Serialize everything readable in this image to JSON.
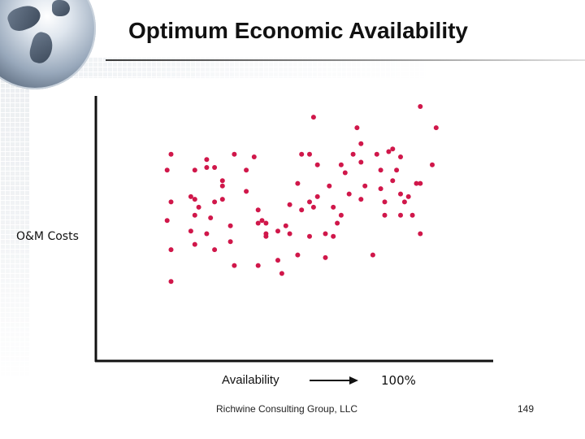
{
  "slide": {
    "title": "Optimum Economic Availability",
    "footer": "Richwine Consulting Group, LLC",
    "page_number": "149"
  },
  "colors": {
    "point": "#d0174a",
    "axis": "#111111",
    "arrow": "#111111"
  },
  "chart_data": {
    "type": "scatter",
    "title": "",
    "xlabel": "Availability",
    "xlabel_end": "100%",
    "ylabel": "O&M Costs",
    "x_axis_arrow": true,
    "xlim": [
      0,
      100
    ],
    "ylim": [
      0,
      100
    ],
    "grid": false,
    "legend": "none",
    "series": [
      {
        "points": [
          [
            19,
            30
          ],
          [
            19,
            42
          ],
          [
            18,
            53
          ],
          [
            19,
            60
          ],
          [
            18,
            72
          ],
          [
            19,
            78
          ],
          [
            24,
            62
          ],
          [
            25,
            55
          ],
          [
            25,
            61
          ],
          [
            25,
            72
          ],
          [
            25,
            44
          ],
          [
            24,
            49
          ],
          [
            28,
            76
          ],
          [
            26,
            58
          ],
          [
            28,
            73
          ],
          [
            30,
            73
          ],
          [
            30,
            42
          ],
          [
            28,
            48
          ],
          [
            29,
            54
          ],
          [
            30,
            60
          ],
          [
            32,
            68
          ],
          [
            32,
            66
          ],
          [
            32,
            61
          ],
          [
            34,
            51
          ],
          [
            34,
            45
          ],
          [
            35,
            36
          ],
          [
            35,
            78
          ],
          [
            40,
            77
          ],
          [
            38,
            72
          ],
          [
            38,
            64
          ],
          [
            41,
            36
          ],
          [
            41,
            57
          ],
          [
            42,
            53
          ],
          [
            43,
            48
          ],
          [
            43,
            47
          ],
          [
            43,
            52
          ],
          [
            41,
            52
          ],
          [
            46,
            38
          ],
          [
            46,
            49
          ],
          [
            48,
            51
          ],
          [
            47,
            33
          ],
          [
            49,
            48
          ],
          [
            49,
            59
          ],
          [
            51,
            67
          ],
          [
            51,
            40
          ],
          [
            52,
            78
          ],
          [
            52,
            57
          ],
          [
            54,
            78
          ],
          [
            54,
            60
          ],
          [
            54,
            47
          ],
          [
            55,
            92
          ],
          [
            55,
            58
          ],
          [
            56,
            74
          ],
          [
            56,
            62
          ],
          [
            58,
            48
          ],
          [
            58,
            39
          ],
          [
            60,
            58
          ],
          [
            59,
            66
          ],
          [
            60,
            47
          ],
          [
            61,
            52
          ],
          [
            62,
            55
          ],
          [
            62,
            74
          ],
          [
            63,
            71
          ],
          [
            64,
            63
          ],
          [
            65,
            78
          ],
          [
            66,
            88
          ],
          [
            67,
            82
          ],
          [
            67,
            75
          ],
          [
            67,
            61
          ],
          [
            68,
            66
          ],
          [
            70,
            40
          ],
          [
            71,
            78
          ],
          [
            72,
            65
          ],
          [
            72,
            72
          ],
          [
            73,
            60
          ],
          [
            73,
            55
          ],
          [
            74,
            79
          ],
          [
            75,
            80
          ],
          [
            75,
            68
          ],
          [
            76,
            72
          ],
          [
            77,
            77
          ],
          [
            77,
            63
          ],
          [
            77,
            55
          ],
          [
            78,
            60
          ],
          [
            79,
            62
          ],
          [
            80,
            55
          ],
          [
            81,
            67
          ],
          [
            82,
            67
          ],
          [
            82,
            96
          ],
          [
            82,
            48
          ],
          [
            85,
            74
          ],
          [
            86,
            88
          ]
        ]
      }
    ]
  }
}
